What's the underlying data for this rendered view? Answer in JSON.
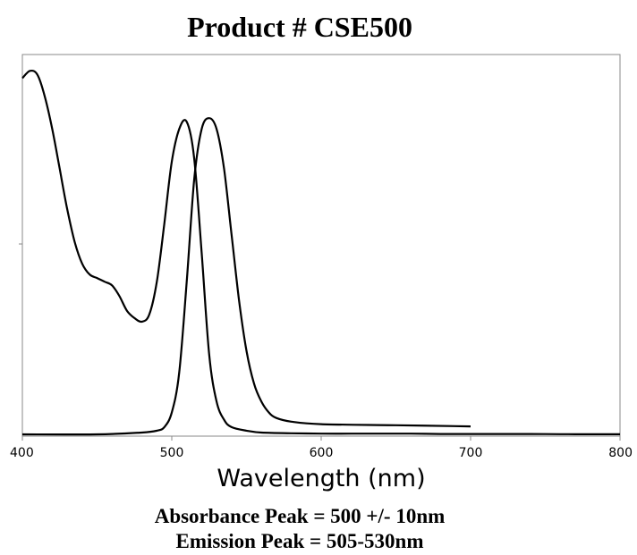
{
  "chart_data": {
    "type": "line",
    "title": "Product # CSE500",
    "xlabel": "Wavelength (nm)",
    "ylabel": "",
    "xlim": [
      400,
      800
    ],
    "ylim": [
      0,
      1.05
    ],
    "xticks": [
      "400",
      "500",
      "600",
      "700",
      "800"
    ],
    "grid": false,
    "series": [
      {
        "x": [
          400,
          405,
          410,
          415,
          420,
          425,
          430,
          435,
          440,
          445,
          450,
          455,
          460,
          465,
          470,
          475,
          480,
          485,
          490,
          495,
          500,
          505,
          510,
          515,
          520,
          525,
          530,
          535,
          540,
          550,
          560,
          580,
          600,
          620,
          640,
          660,
          680,
          700,
          720,
          740,
          760,
          780,
          800
        ],
        "values": [
          0.98,
          1.0,
          0.99,
          0.93,
          0.84,
          0.73,
          0.62,
          0.53,
          0.47,
          0.44,
          0.43,
          0.42,
          0.41,
          0.38,
          0.34,
          0.32,
          0.31,
          0.33,
          0.42,
          0.58,
          0.75,
          0.84,
          0.86,
          0.76,
          0.5,
          0.22,
          0.09,
          0.04,
          0.02,
          0.01,
          0.005,
          0.003,
          0.002,
          0.002,
          0.002,
          0.002,
          0.001,
          0.001,
          0.001,
          0.001,
          0.0005,
          0.0003,
          0.0002
        ]
      },
      {
        "x": [
          400,
          450,
          480,
          490,
          495,
          500,
          505,
          510,
          515,
          520,
          525,
          530,
          535,
          540,
          545,
          550,
          555,
          560,
          565,
          570,
          580,
          600,
          650,
          700
        ],
        "values": [
          0.0,
          0.0,
          0.005,
          0.01,
          0.02,
          0.06,
          0.17,
          0.42,
          0.7,
          0.84,
          0.87,
          0.84,
          0.73,
          0.55,
          0.37,
          0.23,
          0.14,
          0.09,
          0.06,
          0.045,
          0.035,
          0.028,
          0.025,
          0.022
        ]
      }
    ],
    "annotations": [
      "Absorbance Peak = 500 +/- 10nm",
      "Emission Peak = 505-530nm"
    ]
  }
}
